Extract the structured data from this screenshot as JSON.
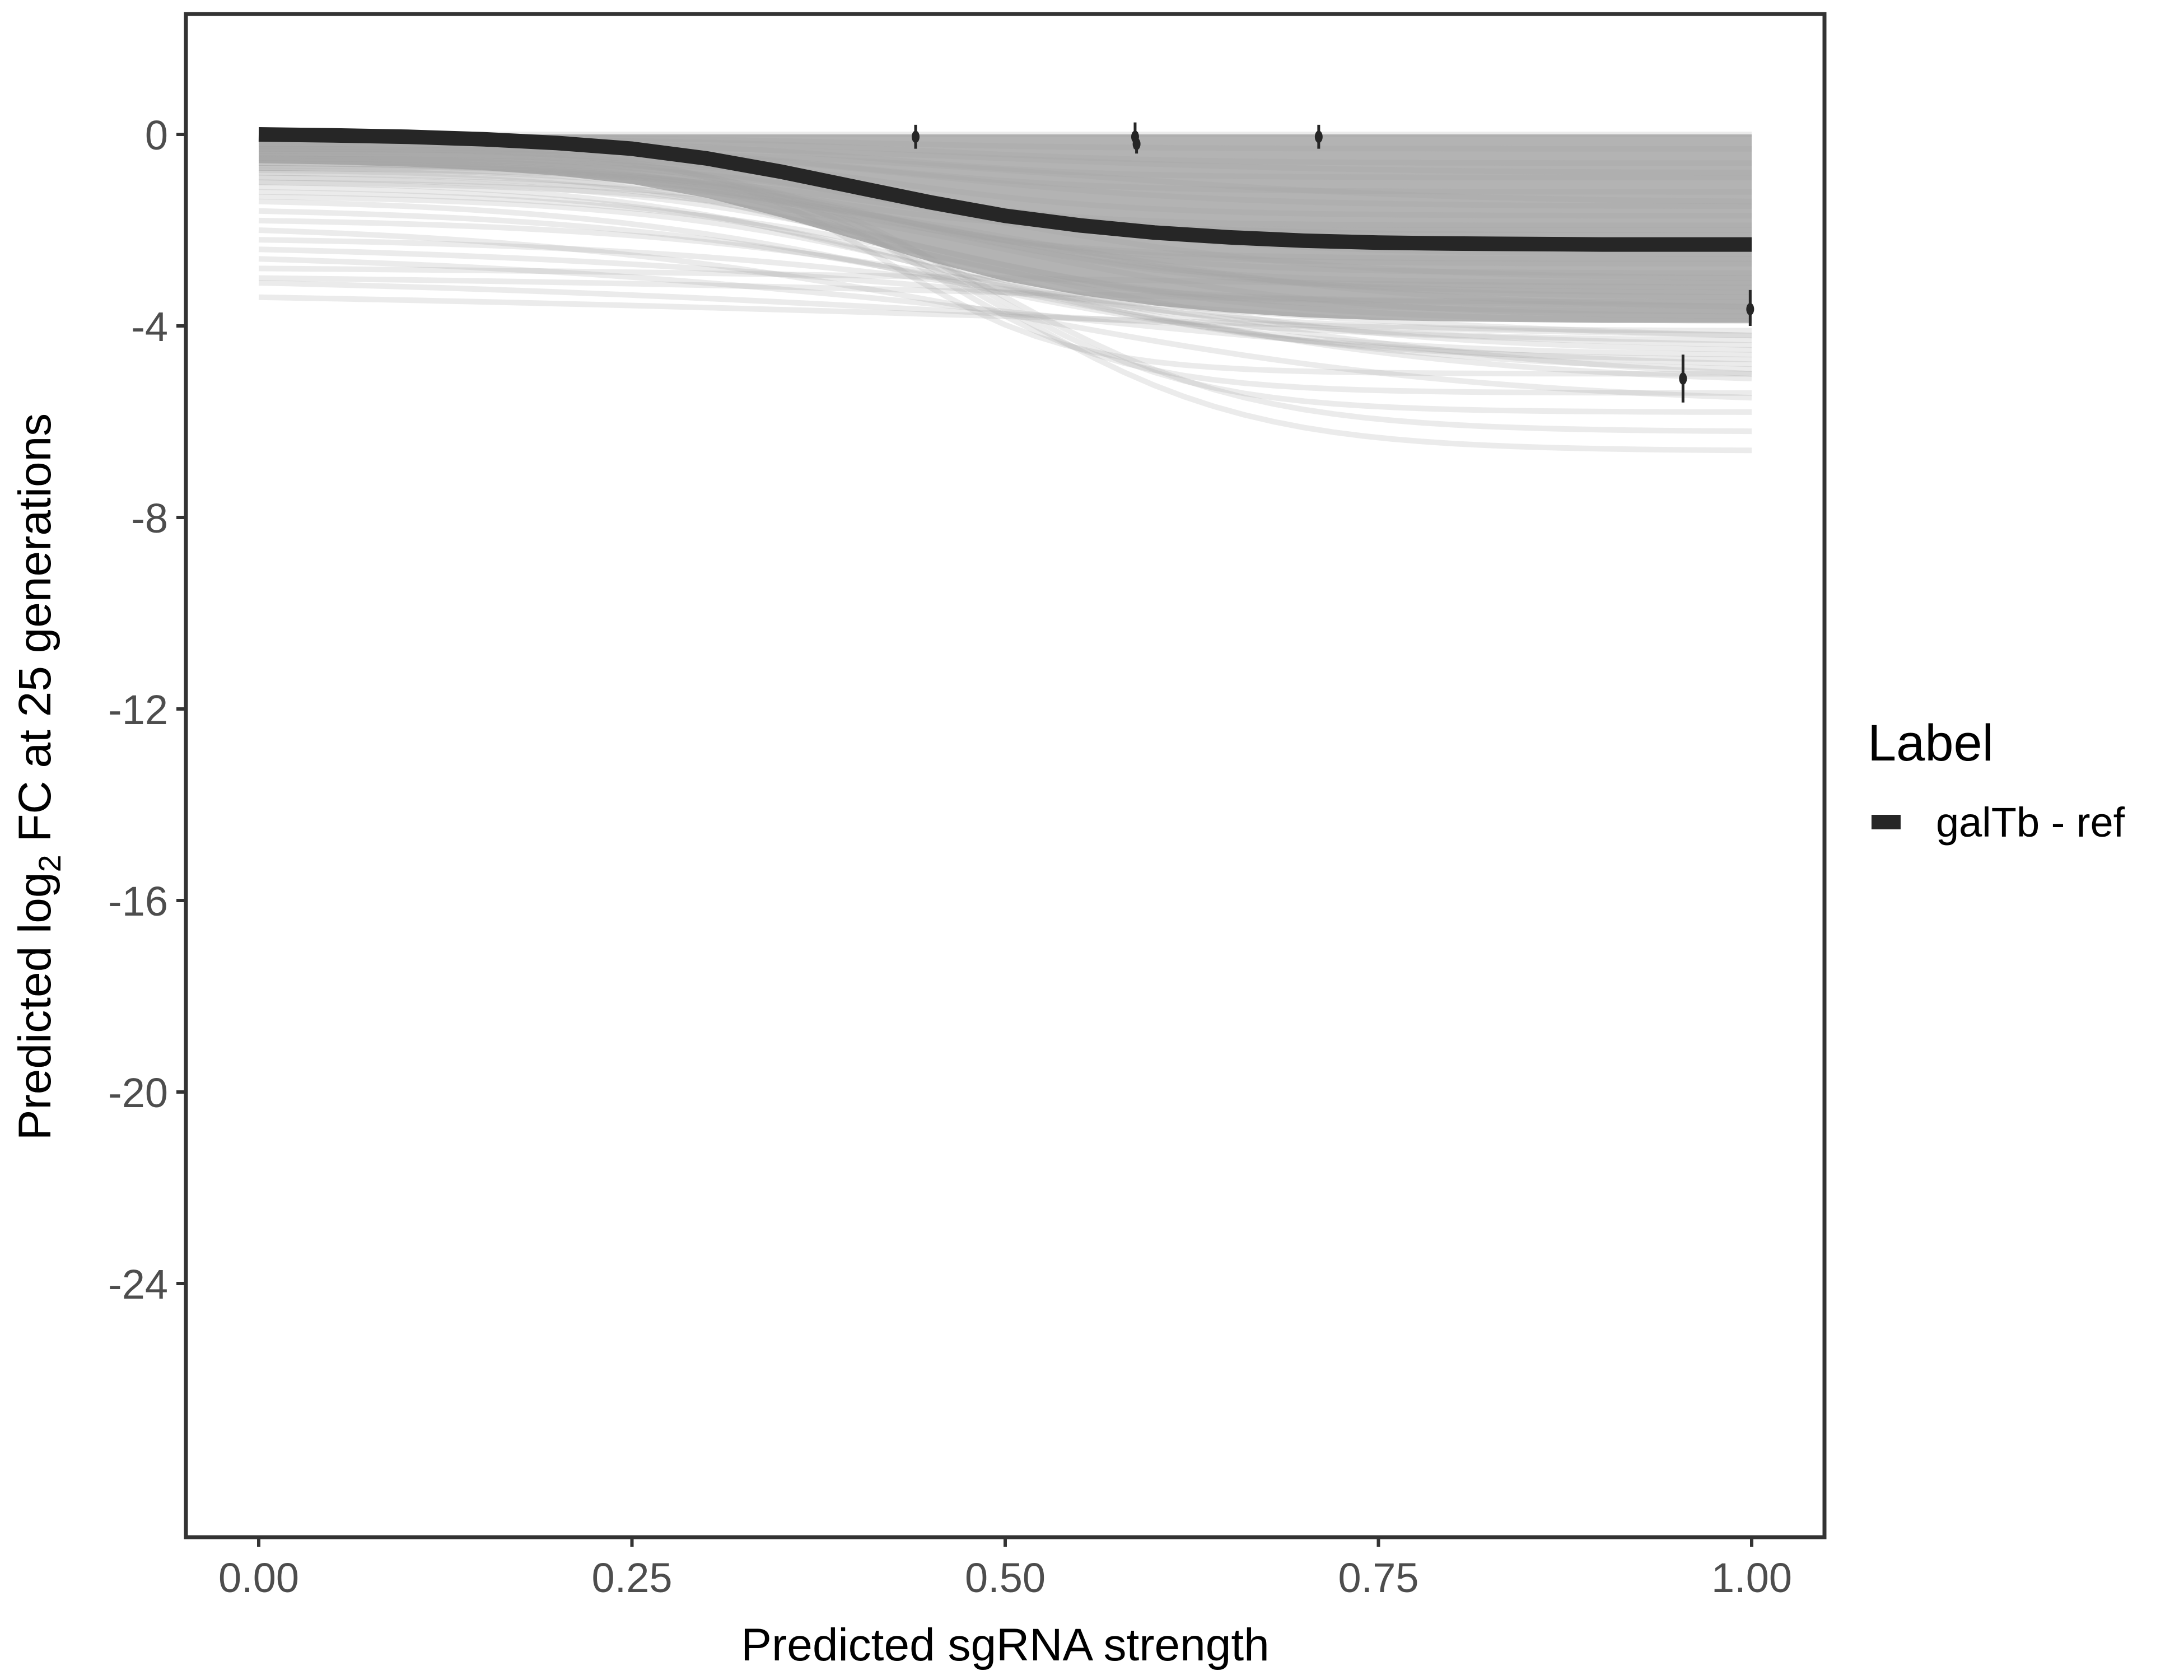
{
  "chart_data": {
    "type": "line",
    "title": "",
    "xlabel": "Predicted sgRNA strength",
    "ylabel_prefix": "Predicted  log",
    "ylabel_sub": "2",
    "ylabel_suffix": " FC at 25 generations",
    "xlim": [
      -0.05,
      1.05
    ],
    "ylim": [
      -29.3,
      2.5
    ],
    "x_ticks": [
      0,
      0.25,
      0.5,
      0.75,
      1.0
    ],
    "x_tick_labels": [
      "0.00",
      "0.25",
      "0.50",
      "0.75",
      "1.00"
    ],
    "y_ticks": [
      0,
      -4,
      -8,
      -12,
      -16,
      -20,
      -24
    ],
    "y_tick_labels": [
      "0",
      "-4",
      "-8",
      "-12",
      "-16",
      "-20",
      "-24"
    ],
    "grid": false,
    "legend": {
      "title": "Label",
      "placement": "right",
      "entries": [
        {
          "label": "galTb - ref",
          "color": "#262626"
        }
      ]
    },
    "median_curve": {
      "name": "galTb - ref",
      "color": "#262626",
      "x": [
        0,
        0.05,
        0.1,
        0.15,
        0.2,
        0.25,
        0.3,
        0.35,
        0.4,
        0.45,
        0.5,
        0.55,
        0.6,
        0.65,
        0.7,
        0.75,
        0.8,
        0.9,
        1.0
      ],
      "y": [
        0,
        -0.02,
        -0.05,
        -0.1,
        -0.18,
        -0.3,
        -0.5,
        -0.78,
        -1.1,
        -1.42,
        -1.7,
        -1.9,
        -2.05,
        -2.15,
        -2.22,
        -2.26,
        -2.28,
        -2.3,
        -2.3
      ]
    },
    "posterior_draws_color": "#a6a6a6",
    "posterior_draws": [
      [
        0,
        0,
        0.4,
        14
      ],
      [
        -0.05,
        -0.3,
        0.4,
        12
      ],
      [
        -0.1,
        -0.6,
        0.45,
        12
      ],
      [
        -0.15,
        -0.9,
        0.42,
        14
      ],
      [
        -0.2,
        -1.2,
        0.4,
        12
      ],
      [
        -0.25,
        -1.5,
        0.45,
        10
      ],
      [
        -0.3,
        -1.7,
        0.42,
        12
      ],
      [
        -0.35,
        -1.9,
        0.4,
        14
      ],
      [
        -0.4,
        -2.1,
        0.43,
        12
      ],
      [
        -0.45,
        -2.3,
        0.42,
        12
      ],
      [
        -0.5,
        -2.5,
        0.45,
        10
      ],
      [
        -0.55,
        -2.7,
        0.4,
        12
      ],
      [
        -0.6,
        -2.9,
        0.42,
        11
      ],
      [
        -0.65,
        -3.1,
        0.44,
        12
      ],
      [
        -0.7,
        -3.3,
        0.45,
        10
      ],
      [
        -0.75,
        -3.5,
        0.4,
        12
      ],
      [
        -0.8,
        -3.7,
        0.43,
        10
      ],
      [
        -0.9,
        -3.9,
        0.45,
        9
      ],
      [
        -1.0,
        -4.1,
        0.42,
        10
      ],
      [
        -1.1,
        -4.3,
        0.45,
        9
      ],
      [
        -0.2,
        -0.8,
        0.5,
        8
      ],
      [
        -0.3,
        -1.4,
        0.55,
        8
      ],
      [
        -0.5,
        -2.0,
        0.35,
        14
      ],
      [
        -0.6,
        -2.6,
        0.38,
        12
      ],
      [
        -0.7,
        -3.0,
        0.5,
        9
      ],
      [
        -0.8,
        -3.4,
        0.48,
        9
      ],
      [
        -0.9,
        -3.6,
        0.52,
        8
      ],
      [
        -1.0,
        -3.8,
        0.5,
        9
      ],
      [
        -1.2,
        -4.5,
        0.5,
        8
      ],
      [
        -1.3,
        -4.7,
        0.48,
        9
      ],
      [
        -0.3,
        -5.0,
        0.42,
        16
      ],
      [
        -0.4,
        -5.4,
        0.45,
        15
      ],
      [
        -0.5,
        -5.8,
        0.48,
        14
      ],
      [
        -0.6,
        -6.2,
        0.5,
        12
      ],
      [
        -0.7,
        -6.6,
        0.5,
        12
      ],
      [
        -1.4,
        -4.6,
        0.45,
        8
      ],
      [
        -1.6,
        -4.9,
        0.5,
        7
      ],
      [
        -1.8,
        -5.1,
        0.55,
        7
      ],
      [
        -2.0,
        -5.5,
        0.5,
        6
      ],
      [
        -2.2,
        -5.0,
        0.6,
        6
      ],
      [
        -2.4,
        -4.2,
        0.5,
        5
      ],
      [
        -2.6,
        -4.8,
        0.5,
        5
      ],
      [
        -2.8,
        -3.2,
        0.5,
        4
      ],
      [
        -3.0,
        -3.6,
        0.5,
        4
      ],
      [
        -3.1,
        -4.4,
        0.5,
        4
      ],
      [
        -3.4,
        -4.2,
        0.5,
        3
      ]
    ],
    "points": [
      {
        "x": 0.44,
        "y": -0.05,
        "ymin": -0.3,
        "ymax": 0.2
      },
      {
        "x": 0.587,
        "y": -0.05,
        "ymin": -0.3,
        "ymax": 0.25
      },
      {
        "x": 0.588,
        "y": -0.2,
        "ymin": -0.4,
        "ymax": 0.05
      },
      {
        "x": 0.71,
        "y": -0.05,
        "ymin": -0.3,
        "ymax": 0.2
      },
      {
        "x": 0.954,
        "y": -5.1,
        "ymin": -5.6,
        "ymax": -4.6
      },
      {
        "x": 0.999,
        "y": -3.65,
        "ymin": -4.0,
        "ymax": -3.25
      }
    ]
  }
}
